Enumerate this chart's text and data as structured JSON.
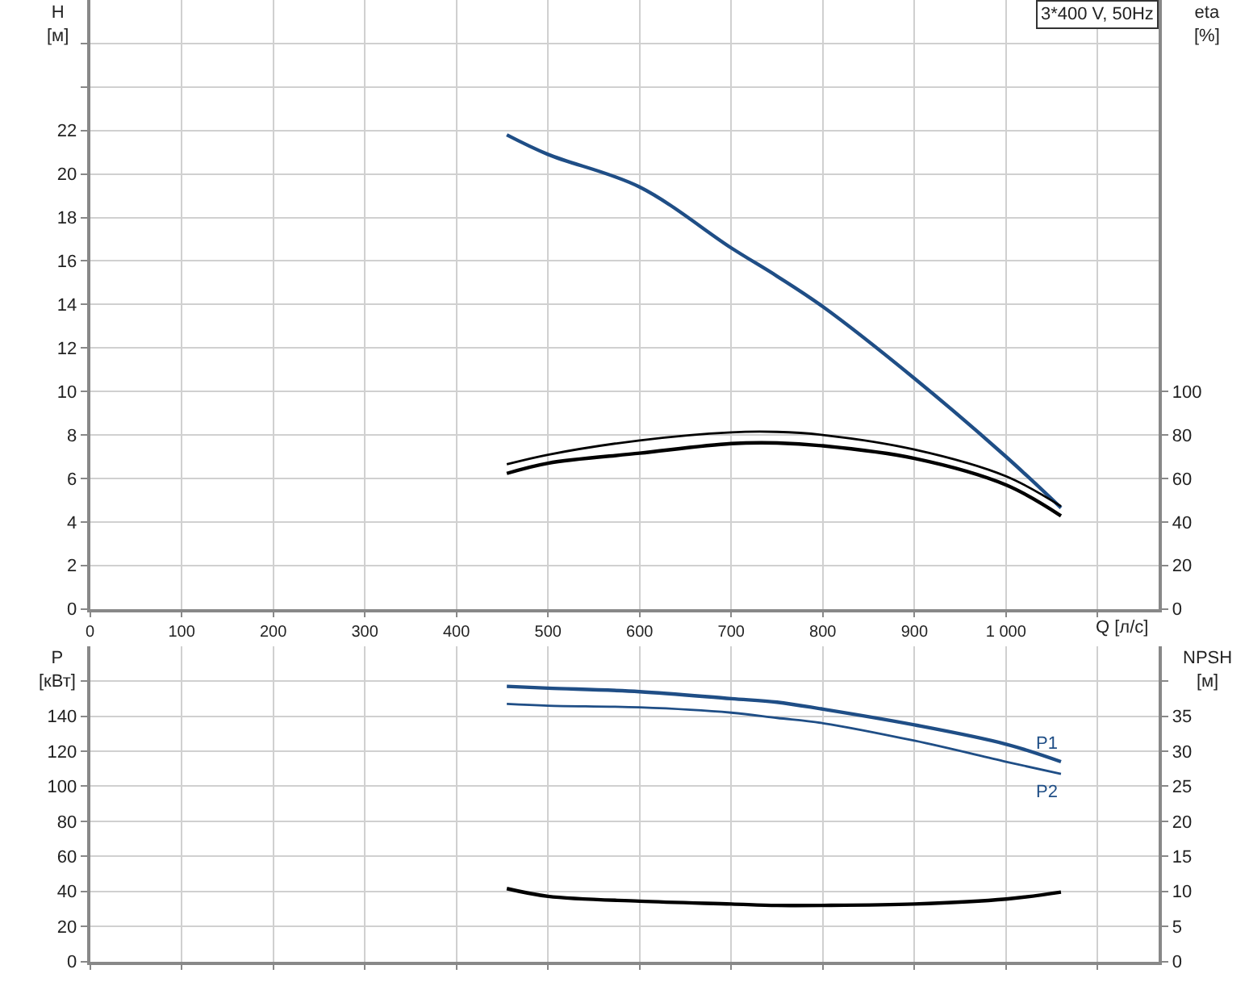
{
  "chart_data": [
    {
      "type": "line",
      "title": "3*400 V, 50Hz",
      "xlabel": "Q [л/с]",
      "ylabel": "H\n[м]",
      "y2label": "eta\n[%]",
      "xlim": [
        0,
        1167
      ],
      "xticks": [
        0,
        100,
        200,
        300,
        400,
        500,
        600,
        700,
        800,
        900,
        {
          "value": 1000,
          "label": "1 000"
        },
        {
          "value": 1100,
          "label": null
        }
      ],
      "ylim": [
        0,
        28
      ],
      "yticks": [
        0,
        2,
        4,
        6,
        8,
        10,
        12,
        14,
        16,
        18,
        20,
        22,
        {
          "value": 24,
          "label": null
        },
        {
          "value": 26,
          "label": null
        }
      ],
      "y2lim": [
        0,
        280
      ],
      "y2ticks": [
        0,
        20,
        40,
        60,
        80,
        100
      ],
      "grid": true,
      "marker": "none",
      "line_style": "solid",
      "series": [
        {
          "color": "#1f4e86",
          "x": [
            455,
            500,
            600,
            700,
            750,
            800,
            900,
            1000,
            1060
          ],
          "values": [
            21.8,
            20.9,
            19.4,
            16.6,
            15.3,
            13.9,
            10.6,
            7.0,
            4.65
          ]
        },
        {
          "color": "#000000",
          "axis": "y2",
          "x": [
            455,
            500,
            600,
            700,
            750,
            800,
            900,
            1000,
            1060
          ],
          "values": [
            66.5,
            70.9,
            77.5,
            81.2,
            81.4,
            80,
            73.3,
            61,
            47.2
          ]
        },
        {
          "color": "#000000",
          "axis": "y2",
          "x": [
            455,
            500,
            600,
            700,
            750,
            800,
            900,
            1000,
            1060
          ],
          "values": [
            62.3,
            67,
            71.6,
            76,
            76.3,
            75,
            69.2,
            57,
            42.8
          ]
        }
      ]
    },
    {
      "type": "line",
      "ylabel": "P\n[кВт]",
      "y2label": "NPSH\n[м]",
      "xlim": [
        0,
        1167
      ],
      "xticks": [
        {
          "value": 0,
          "label": null
        },
        {
          "value": 100,
          "label": null
        },
        {
          "value": 200,
          "label": null
        },
        {
          "value": 300,
          "label": null
        },
        {
          "value": 400,
          "label": null
        },
        {
          "value": 500,
          "label": null
        },
        {
          "value": 600,
          "label": null
        },
        {
          "value": 700,
          "label": null
        },
        {
          "value": 800,
          "label": null
        },
        {
          "value": 900,
          "label": null
        },
        {
          "value": 1000,
          "label": null
        },
        {
          "value": 1100,
          "label": null
        }
      ],
      "ylim": [
        0,
        180
      ],
      "yticks": [
        0,
        20,
        40,
        60,
        80,
        100,
        120,
        140,
        {
          "value": 160,
          "label": null
        }
      ],
      "y2lim": [
        0,
        45
      ],
      "y2ticks": [
        0,
        5,
        10,
        15,
        20,
        25,
        30,
        35,
        {
          "value": 40,
          "label": null
        }
      ],
      "tick_labels": "y",
      "grid": true,
      "marker": "none",
      "line_style": "solid",
      "annotations": [
        "P1",
        "P2"
      ],
      "series": [
        {
          "color": "#1f4e86",
          "x": [
            455,
            500,
            600,
            700,
            750,
            800,
            900,
            1000,
            1060
          ],
          "values": [
            157,
            156,
            154,
            150,
            148,
            144,
            135,
            124,
            114
          ]
        },
        {
          "color": "#1f4e86",
          "x": [
            455,
            500,
            600,
            700,
            750,
            800,
            900,
            1000,
            1060
          ],
          "values": [
            147,
            146,
            145,
            142,
            139,
            136,
            126,
            114,
            107
          ]
        },
        {
          "color": "#000000",
          "axis": "y2",
          "x": [
            455,
            500,
            600,
            700,
            750,
            800,
            900,
            1000,
            1060
          ],
          "values": [
            10.4,
            9.3,
            8.6,
            8.2,
            8.0,
            8.0,
            8.2,
            8.9,
            9.9
          ]
        }
      ]
    }
  ]
}
